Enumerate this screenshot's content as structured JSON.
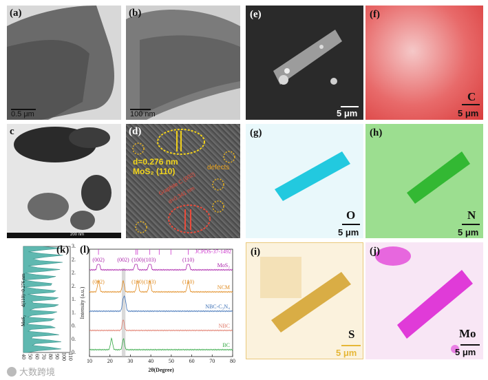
{
  "panels": {
    "a": {
      "label": "(a)",
      "scale": "0.5 μm"
    },
    "b": {
      "label": "(b)",
      "scale": "100 nm"
    },
    "c": {
      "label": "c",
      "scale": "200 nm"
    },
    "d": {
      "label": "(d)",
      "spacing1": "d=0.276 nm",
      "phase1": "MoS₂ (110)",
      "phase2": "Graphite C (002)",
      "spacing2": "d=0.341 nm",
      "defects": "defects"
    },
    "e": {
      "label": "(e)",
      "scale": "5 μm"
    },
    "f": {
      "label": "(f)",
      "element": "C",
      "scale": "5 μm"
    },
    "g": {
      "label": "(g)",
      "element": "O",
      "scale": "5 μm"
    },
    "h": {
      "label": "(h)",
      "element": "N",
      "scale": "5 μm"
    },
    "i": {
      "label": "(i)",
      "element": "S",
      "scale": "5 μm"
    },
    "j": {
      "label": "(j)",
      "element": "Mo",
      "scale": "5 μm"
    },
    "k": {
      "label": "(k)",
      "dlabel": "d(110)=0.276 nm",
      "ylabel": "MoS₂"
    },
    "l": {
      "label": "(l)"
    }
  },
  "watermark": "大数跨境",
  "chart_data": [
    {
      "type": "line",
      "panel": "k",
      "title": "",
      "xlabel": "",
      "ylabel": "",
      "x": [
        0,
        0.2,
        0.4,
        0.6,
        0.8,
        1.0,
        1.2,
        1.4,
        1.6,
        1.8,
        2.0,
        2.2,
        2.4,
        2.6,
        2.8,
        3.0,
        3.2
      ],
      "y_ticks": [
        "0.0",
        "0.4",
        "0.8",
        "1.2",
        "1.6",
        "2.0",
        "2.4",
        "2.8",
        "3.2"
      ],
      "x_ticks": [
        "40",
        "50",
        "60",
        "70",
        "80",
        "90",
        "100",
        "110"
      ],
      "fill_color": "#5fb8b0"
    },
    {
      "type": "line",
      "panel": "l",
      "title": "",
      "xlabel": "2θ(Degree)",
      "ylabel": "Intensity (a.u.)",
      "xlim": [
        10,
        80
      ],
      "x_ticks": [
        "10",
        "20",
        "30",
        "40",
        "50",
        "60",
        "70",
        "80"
      ],
      "reference": {
        "name": "JCPDS-37-1492",
        "color": "#cc33cc",
        "lines": [
          14.4,
          32.7,
          33.5,
          39.5,
          44.1,
          49.8,
          58.3
        ]
      },
      "reference_labels": [
        {
          "text": "(002)",
          "x": 14.4
        },
        {
          "text": "(100)",
          "x": 33.5
        },
        {
          "text": "(103)",
          "x": 39.5
        },
        {
          "text": "(110)",
          "x": 58.3
        }
      ],
      "series": [
        {
          "name": "MoS₂",
          "color": "#aa22aa",
          "peaks": [
            14.4,
            32.7,
            39.5,
            58.3
          ],
          "labels": [
            {
              "text": "(002)",
              "x": 26.5
            }
          ]
        },
        {
          "name": "NCM",
          "color": "#e08a1e",
          "peaks": [
            14.4,
            26.5,
            33.5,
            39.5,
            58.3
          ],
          "labels": [
            {
              "text": "(002)",
              "x": 14.4
            },
            {
              "text": "(100)",
              "x": 33.5
            },
            {
              "text": "(103)",
              "x": 39.5
            },
            {
              "text": "(110)",
              "x": 58.3
            }
          ]
        },
        {
          "name": "NBC-C₃N₄",
          "color": "#3b6fb5",
          "peaks": [
            26.5,
            27.4
          ]
        },
        {
          "name": "NBC",
          "color": "#e07a6a",
          "peaks": [
            26.5
          ]
        },
        {
          "name": "BC",
          "color": "#33a844",
          "peaks": [
            20.8,
            26.6
          ]
        }
      ],
      "highlight_band": [
        25.8,
        27.6
      ]
    }
  ]
}
